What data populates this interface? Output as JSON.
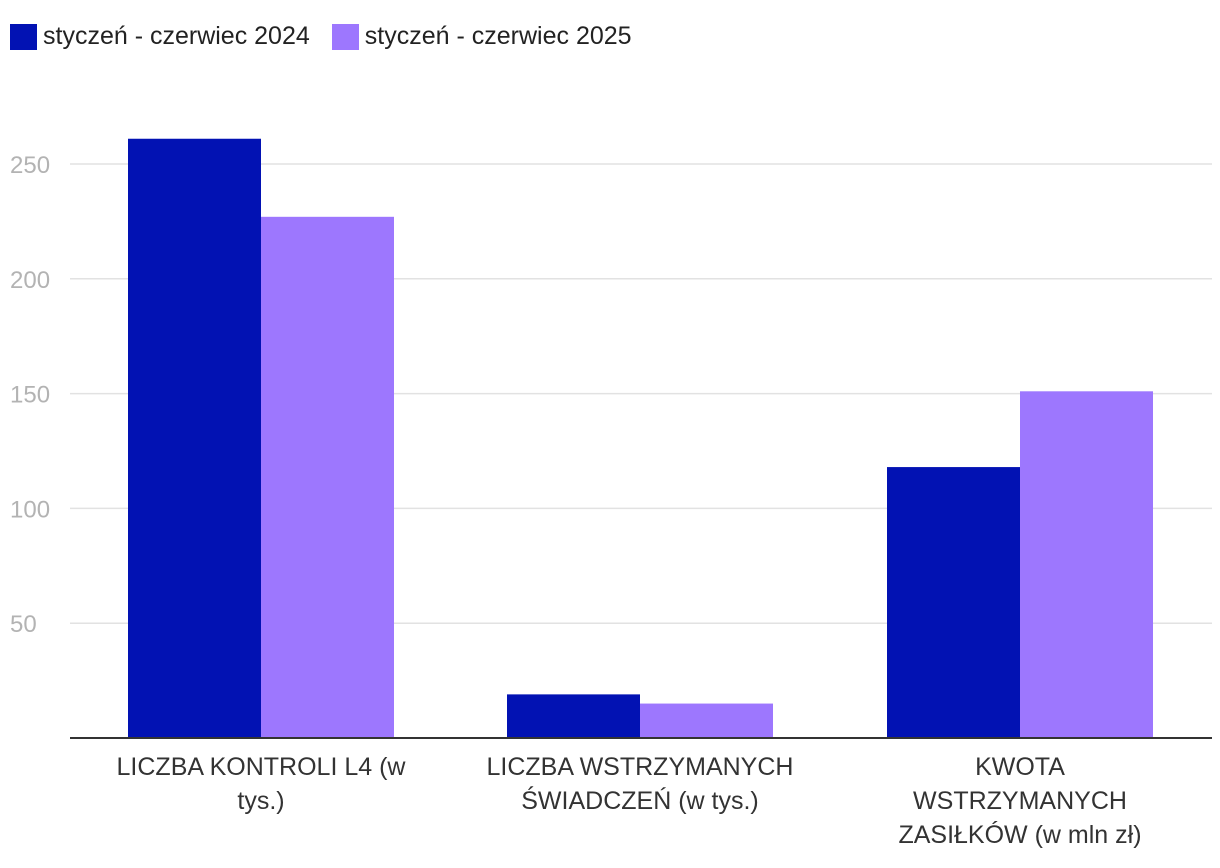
{
  "chart_data": {
    "type": "bar",
    "categories": [
      "LICZBA KONTROLI L4 (w tys.)",
      "LICZBA WSTRZYMANYCH ŚWIADCZEŃ (w tys.)",
      "KWOTA WSTRZYMANYCH ZASIŁKÓW (w mln zł)"
    ],
    "series": [
      {
        "name": "styczeń - czerwiec 2024",
        "color": "#0212b3",
        "values": [
          261,
          19,
          118
        ]
      },
      {
        "name": "styczeń - czerwiec 2025",
        "color": "#9d77fe",
        "values": [
          227,
          15,
          151
        ]
      }
    ],
    "yticks": [
      50,
      100,
      150,
      200,
      250
    ],
    "ylim": [
      0,
      275
    ],
    "title": "",
    "xlabel": "",
    "ylabel": "",
    "grid": true,
    "legend_position": "top-left"
  }
}
